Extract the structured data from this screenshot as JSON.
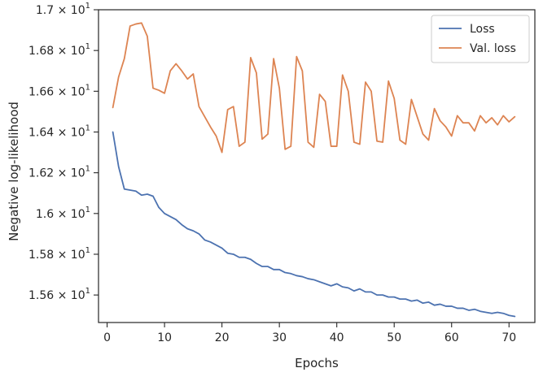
{
  "chart_data": {
    "type": "line",
    "title": "",
    "xlabel": "Epochs",
    "ylabel": "Negative log-likelihood",
    "xlim": [
      -1.5,
      74.5
    ],
    "ylim": [
      15.465,
      17.0
    ],
    "x_scale": "linear",
    "y_scale": "linear",
    "grid": false,
    "legend_position": "top-right",
    "x_ticks": [
      {
        "value": 0,
        "label": "0"
      },
      {
        "value": 10,
        "label": "10"
      },
      {
        "value": 20,
        "label": "20"
      },
      {
        "value": 30,
        "label": "30"
      },
      {
        "value": 40,
        "label": "40"
      },
      {
        "value": 50,
        "label": "50"
      },
      {
        "value": 60,
        "label": "60"
      },
      {
        "value": 70,
        "label": "70"
      }
    ],
    "y_ticks": [
      {
        "value": 15.6,
        "mantissa": "1.56",
        "base": "10",
        "exp": "1"
      },
      {
        "value": 15.8,
        "mantissa": "1.58",
        "base": "10",
        "exp": "1"
      },
      {
        "value": 16.0,
        "mantissa": "1.6",
        "base": "10",
        "exp": "1"
      },
      {
        "value": 16.2,
        "mantissa": "1.62",
        "base": "10",
        "exp": "1"
      },
      {
        "value": 16.4,
        "mantissa": "1.64",
        "base": "10",
        "exp": "1"
      },
      {
        "value": 16.6,
        "mantissa": "1.66",
        "base": "10",
        "exp": "1"
      },
      {
        "value": 16.8,
        "mantissa": "1.68",
        "base": "10",
        "exp": "1"
      },
      {
        "value": 17.0,
        "mantissa": "1.7",
        "base": "10",
        "exp": "1"
      }
    ],
    "series": [
      {
        "name": "Loss",
        "color": "#4c72b0",
        "x": [
          1,
          2,
          3,
          4,
          5,
          6,
          7,
          8,
          9,
          10,
          11,
          12,
          13,
          14,
          15,
          16,
          17,
          18,
          19,
          20,
          21,
          22,
          23,
          24,
          25,
          26,
          27,
          28,
          29,
          30,
          31,
          32,
          33,
          34,
          35,
          36,
          37,
          38,
          39,
          40,
          41,
          42,
          43,
          44,
          45,
          46,
          47,
          48,
          49,
          50,
          51,
          52,
          53,
          54,
          55,
          56,
          57,
          58,
          59,
          60,
          61,
          62,
          63,
          64,
          65,
          66,
          67,
          68,
          69,
          70,
          71
        ],
        "y": [
          16.4,
          16.23,
          16.12,
          16.115,
          16.11,
          16.09,
          16.095,
          16.085,
          16.03,
          16.0,
          15.985,
          15.97,
          15.945,
          15.925,
          15.915,
          15.9,
          15.87,
          15.86,
          15.845,
          15.83,
          15.805,
          15.8,
          15.785,
          15.785,
          15.775,
          15.755,
          15.74,
          15.74,
          15.725,
          15.725,
          15.71,
          15.705,
          15.695,
          15.69,
          15.68,
          15.675,
          15.665,
          15.655,
          15.645,
          15.655,
          15.64,
          15.635,
          15.62,
          15.63,
          15.615,
          15.615,
          15.6,
          15.6,
          15.59,
          15.59,
          15.58,
          15.58,
          15.57,
          15.575,
          15.56,
          15.565,
          15.55,
          15.555,
          15.545,
          15.545,
          15.535,
          15.535,
          15.525,
          15.53,
          15.52,
          15.515,
          15.51,
          15.515,
          15.51,
          15.5,
          15.495
        ]
      },
      {
        "name": "Val. loss",
        "color": "#dd8452",
        "x": [
          1,
          2,
          3,
          4,
          5,
          6,
          7,
          8,
          9,
          10,
          11,
          12,
          13,
          14,
          15,
          16,
          17,
          18,
          19,
          20,
          21,
          22,
          23,
          24,
          25,
          26,
          27,
          28,
          29,
          30,
          31,
          32,
          33,
          34,
          35,
          36,
          37,
          38,
          39,
          40,
          41,
          42,
          43,
          44,
          45,
          46,
          47,
          48,
          49,
          50,
          51,
          52,
          53,
          54,
          55,
          56,
          57,
          58,
          59,
          60,
          61,
          62,
          63,
          64,
          65,
          66,
          67,
          68,
          69,
          70,
          71
        ],
        "y": [
          16.52,
          16.67,
          16.76,
          16.92,
          16.93,
          16.935,
          16.87,
          16.615,
          16.605,
          16.59,
          16.7,
          16.735,
          16.7,
          16.66,
          16.685,
          16.525,
          16.475,
          16.425,
          16.38,
          16.3,
          16.51,
          16.525,
          16.33,
          16.35,
          16.765,
          16.69,
          16.365,
          16.39,
          16.76,
          16.615,
          16.315,
          16.33,
          16.77,
          16.7,
          16.35,
          16.325,
          16.585,
          16.55,
          16.33,
          16.33,
          16.68,
          16.6,
          16.35,
          16.34,
          16.645,
          16.6,
          16.355,
          16.35,
          16.65,
          16.565,
          16.36,
          16.34,
          16.56,
          16.475,
          16.39,
          16.36,
          16.515,
          16.455,
          16.425,
          16.38,
          16.48,
          16.445,
          16.445,
          16.405,
          16.48,
          16.445,
          16.47,
          16.435,
          16.48,
          16.45,
          16.475
        ]
      }
    ]
  }
}
